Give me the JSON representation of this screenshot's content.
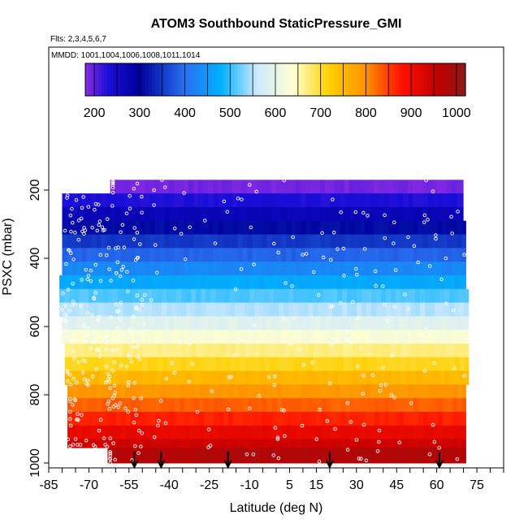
{
  "chart_data": {
    "type": "heatmap",
    "title": "ATOM3 Southbound StaticPressure_GMI",
    "subtitle_flights": "Flts: 2,3,4,5,6,7",
    "subtitle_dates": "MMDD: 1001,1004,1006,1008,1011,1014",
    "xlabel": "Latitude (deg N)",
    "ylabel": "PSXC (mbar)",
    "xlim": [
      -85,
      85
    ],
    "ylim": [
      1000,
      0
    ],
    "x_tick_labels": [
      "-85",
      "-70",
      "-55",
      "-40",
      "-25",
      "-10",
      "5",
      "15",
      "30",
      "45",
      "60",
      "75"
    ],
    "x_tick_values": [
      -85,
      -70,
      -55,
      -40,
      -25,
      -10,
      5,
      15,
      30,
      45,
      60,
      75
    ],
    "x_minor_step": 5,
    "y_tick_labels": [
      "200",
      "400",
      "600",
      "800",
      "1000"
    ],
    "y_tick_values": [
      200,
      400,
      600,
      800,
      1000
    ],
    "colorbar": {
      "min": 180,
      "max": 1020,
      "tick_labels": [
        "200",
        "300",
        "400",
        "500",
        "600",
        "700",
        "800",
        "900",
        "1000"
      ],
      "tick_values": [
        200,
        300,
        400,
        500,
        600,
        700,
        800,
        900,
        1000
      ],
      "stops": [
        {
          "v": 180,
          "c": "#8b2be2"
        },
        {
          "v": 230,
          "c": "#1a0fd8"
        },
        {
          "v": 300,
          "c": "#00009c"
        },
        {
          "v": 400,
          "c": "#2870f0"
        },
        {
          "v": 480,
          "c": "#00b0ff"
        },
        {
          "v": 560,
          "c": "#cfeaff"
        },
        {
          "v": 640,
          "c": "#ffffd0"
        },
        {
          "v": 720,
          "c": "#ffd000"
        },
        {
          "v": 800,
          "c": "#ff9000"
        },
        {
          "v": 880,
          "c": "#ff1000"
        },
        {
          "v": 960,
          "c": "#c00000"
        },
        {
          "v": 1020,
          "c": "#8b1a1a"
        }
      ]
    },
    "bands": [
      {
        "p_top": 170,
        "p_bot": 210,
        "lat_min": -62,
        "lat_max": 70
      },
      {
        "p_top": 210,
        "p_bot": 250,
        "lat_min": -80,
        "lat_max": 70
      },
      {
        "p_top": 250,
        "p_bot": 290,
        "lat_min": -80,
        "lat_max": 70
      },
      {
        "p_top": 290,
        "p_bot": 330,
        "lat_min": -80,
        "lat_max": 71
      },
      {
        "p_top": 330,
        "p_bot": 370,
        "lat_min": -80,
        "lat_max": 71
      },
      {
        "p_top": 370,
        "p_bot": 410,
        "lat_min": -80,
        "lat_max": 71
      },
      {
        "p_top": 410,
        "p_bot": 450,
        "lat_min": -80,
        "lat_max": 71
      },
      {
        "p_top": 450,
        "p_bot": 490,
        "lat_min": -81,
        "lat_max": 71
      },
      {
        "p_top": 490,
        "p_bot": 530,
        "lat_min": -81,
        "lat_max": 72
      },
      {
        "p_top": 530,
        "p_bot": 570,
        "lat_min": -81,
        "lat_max": 72
      },
      {
        "p_top": 570,
        "p_bot": 610,
        "lat_min": -80,
        "lat_max": 72
      },
      {
        "p_top": 610,
        "p_bot": 650,
        "lat_min": -80,
        "lat_max": 72
      },
      {
        "p_top": 650,
        "p_bot": 690,
        "lat_min": -79,
        "lat_max": 72
      },
      {
        "p_top": 690,
        "p_bot": 730,
        "lat_min": -79,
        "lat_max": 72
      },
      {
        "p_top": 730,
        "p_bot": 770,
        "lat_min": -79,
        "lat_max": 72
      },
      {
        "p_top": 770,
        "p_bot": 810,
        "lat_min": -78,
        "lat_max": 71
      },
      {
        "p_top": 810,
        "p_bot": 850,
        "lat_min": -78,
        "lat_max": 71
      },
      {
        "p_top": 850,
        "p_bot": 890,
        "lat_min": -78,
        "lat_max": 71
      },
      {
        "p_top": 890,
        "p_bot": 930,
        "lat_min": -78,
        "lat_max": 71
      },
      {
        "p_top": 930,
        "p_bot": 955,
        "lat_min": -78,
        "lat_max": 71
      },
      {
        "p_top": 955,
        "p_bot": 1000,
        "lat_min": -63,
        "lat_max": 71
      }
    ],
    "arrows_lat": [
      -53,
      -43,
      -18,
      20,
      61
    ]
  }
}
